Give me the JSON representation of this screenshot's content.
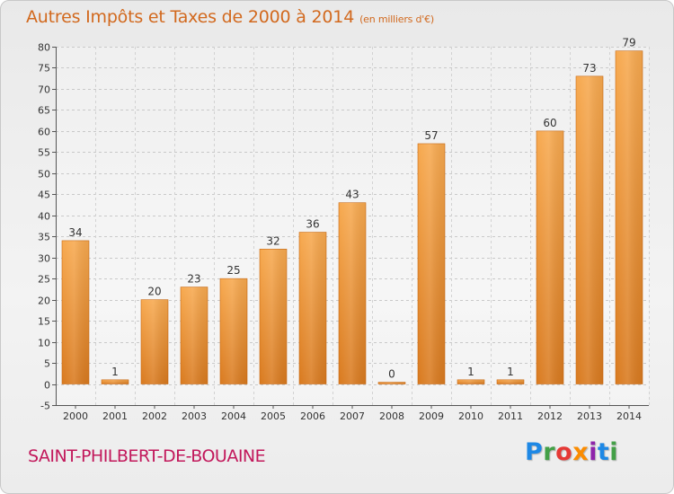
{
  "header": {
    "title": "Autres Impôts et Taxes de 2000 à 2014",
    "subtitle": "(en milliers d'€)"
  },
  "footer": {
    "commune": "SAINT-PHILBERT-DE-BOUAINE",
    "logo": "Proxiti"
  },
  "colors": {
    "bar_light": "#f7a94f",
    "bar_dark": "#d97a1f",
    "title": "#d2691e",
    "commune": "#c2185b"
  },
  "chart_data": {
    "type": "bar",
    "title": "Autres Impôts et Taxes de 2000 à 2014",
    "subtitle": "(en milliers d'€)",
    "xlabel": "",
    "ylabel": "",
    "categories": [
      "2000",
      "2001",
      "2002",
      "2003",
      "2004",
      "2005",
      "2006",
      "2007",
      "2008",
      "2009",
      "2010",
      "2011",
      "2012",
      "2013",
      "2014"
    ],
    "values": [
      34,
      1,
      20,
      23,
      25,
      32,
      36,
      43,
      0,
      57,
      1,
      1,
      60,
      73,
      79
    ],
    "ylim": [
      -5,
      80
    ],
    "yticks": [
      -5,
      0,
      5,
      10,
      15,
      20,
      25,
      30,
      35,
      40,
      45,
      50,
      55,
      60,
      65,
      70,
      75,
      80
    ],
    "grid": "horizontal",
    "legend": "none",
    "data_labels": true
  }
}
